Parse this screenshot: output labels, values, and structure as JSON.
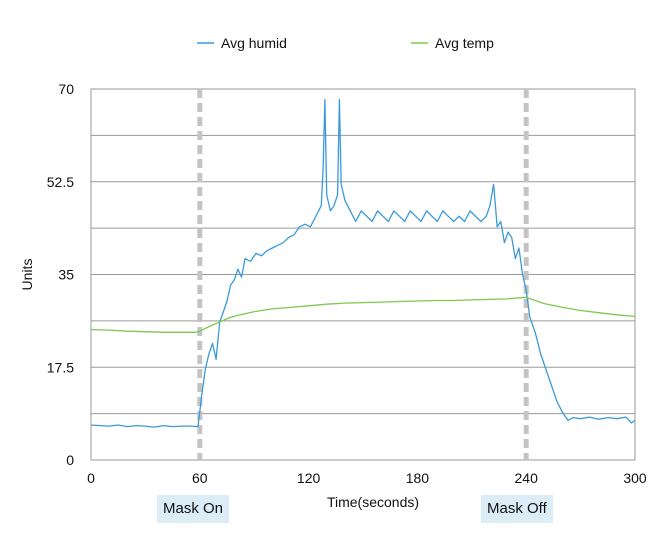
{
  "chart_data": {
    "type": "line",
    "xlabel": "Time(seconds)",
    "ylabel": "Units",
    "xlim": [
      0,
      300
    ],
    "ylim": [
      0,
      70
    ],
    "x_ticks": [
      "0",
      "60",
      "120",
      "180",
      "240",
      "300"
    ],
    "y_ticks": [
      "0",
      "17.5",
      "35",
      "52.5",
      "70"
    ],
    "grid": "horizontal",
    "legend_position": "top",
    "series": [
      {
        "name": "Avg humid",
        "color": "#3a9ad9",
        "points": [
          [
            0,
            6.6
          ],
          [
            5,
            6.5
          ],
          [
            10,
            6.4
          ],
          [
            15,
            6.6
          ],
          [
            20,
            6.3
          ],
          [
            25,
            6.5
          ],
          [
            30,
            6.4
          ],
          [
            35,
            6.2
          ],
          [
            40,
            6.5
          ],
          [
            45,
            6.3
          ],
          [
            50,
            6.4
          ],
          [
            55,
            6.4
          ],
          [
            59,
            6.3
          ],
          [
            61,
            12
          ],
          [
            63,
            17
          ],
          [
            65,
            20
          ],
          [
            67,
            22
          ],
          [
            69,
            19
          ],
          [
            71,
            26
          ],
          [
            73,
            28
          ],
          [
            75,
            30
          ],
          [
            77,
            33
          ],
          [
            79,
            34
          ],
          [
            81,
            36
          ],
          [
            83,
            34.5
          ],
          [
            85,
            38
          ],
          [
            88,
            37.5
          ],
          [
            91,
            39
          ],
          [
            94,
            38.5
          ],
          [
            97,
            39.5
          ],
          [
            100,
            40
          ],
          [
            103,
            40.5
          ],
          [
            106,
            41
          ],
          [
            109,
            42
          ],
          [
            112,
            42.5
          ],
          [
            115,
            44
          ],
          [
            118,
            44.5
          ],
          [
            121,
            44
          ],
          [
            124,
            46
          ],
          [
            127,
            48
          ],
          [
            128,
            55
          ],
          [
            129,
            68
          ],
          [
            130,
            50
          ],
          [
            132,
            47
          ],
          [
            134,
            48
          ],
          [
            136,
            50
          ],
          [
            137,
            68
          ],
          [
            138,
            52
          ],
          [
            140,
            49
          ],
          [
            143,
            47
          ],
          [
            146,
            45
          ],
          [
            149,
            47
          ],
          [
            152,
            46
          ],
          [
            155,
            45
          ],
          [
            158,
            47
          ],
          [
            161,
            46
          ],
          [
            164,
            45
          ],
          [
            167,
            47
          ],
          [
            170,
            46
          ],
          [
            173,
            45
          ],
          [
            176,
            47
          ],
          [
            179,
            46
          ],
          [
            182,
            45
          ],
          [
            185,
            47
          ],
          [
            188,
            46
          ],
          [
            191,
            45
          ],
          [
            194,
            47
          ],
          [
            197,
            46
          ],
          [
            200,
            45
          ],
          [
            203,
            46
          ],
          [
            206,
            45
          ],
          [
            209,
            47
          ],
          [
            212,
            46
          ],
          [
            215,
            45
          ],
          [
            218,
            46
          ],
          [
            220,
            48
          ],
          [
            222,
            52
          ],
          [
            224,
            44
          ],
          [
            226,
            45
          ],
          [
            228,
            41
          ],
          [
            230,
            43
          ],
          [
            232,
            42
          ],
          [
            234,
            38
          ],
          [
            236,
            40
          ],
          [
            238,
            35
          ],
          [
            240,
            32
          ],
          [
            242,
            27
          ],
          [
            245,
            24
          ],
          [
            248,
            20
          ],
          [
            251,
            17
          ],
          [
            254,
            14
          ],
          [
            257,
            11
          ],
          [
            260,
            9
          ],
          [
            263,
            7.5
          ],
          [
            266,
            8
          ],
          [
            270,
            7.8
          ],
          [
            275,
            8.1
          ],
          [
            280,
            7.7
          ],
          [
            285,
            8
          ],
          [
            290,
            7.8
          ],
          [
            295,
            8.1
          ],
          [
            298,
            7
          ],
          [
            300,
            7.5
          ]
        ]
      },
      {
        "name": "Avg temp",
        "color": "#7ec850",
        "points": [
          [
            0,
            24.6
          ],
          [
            10,
            24.5
          ],
          [
            20,
            24.3
          ],
          [
            30,
            24.2
          ],
          [
            40,
            24.1
          ],
          [
            50,
            24.1
          ],
          [
            58,
            24.1
          ],
          [
            60,
            24.3
          ],
          [
            64,
            25
          ],
          [
            68,
            25.6
          ],
          [
            72,
            26.2
          ],
          [
            76,
            26.8
          ],
          [
            80,
            27.2
          ],
          [
            85,
            27.6
          ],
          [
            90,
            28
          ],
          [
            100,
            28.5
          ],
          [
            110,
            28.8
          ],
          [
            120,
            29.1
          ],
          [
            130,
            29.4
          ],
          [
            140,
            29.6
          ],
          [
            150,
            29.7
          ],
          [
            160,
            29.8
          ],
          [
            170,
            29.9
          ],
          [
            180,
            30
          ],
          [
            190,
            30.1
          ],
          [
            200,
            30.1
          ],
          [
            210,
            30.2
          ],
          [
            220,
            30.3
          ],
          [
            230,
            30.4
          ],
          [
            236,
            30.6
          ],
          [
            240,
            30.7
          ],
          [
            244,
            30.2
          ],
          [
            250,
            29.5
          ],
          [
            260,
            28.8
          ],
          [
            270,
            28.2
          ],
          [
            280,
            27.8
          ],
          [
            290,
            27.4
          ],
          [
            300,
            27.1
          ]
        ]
      }
    ],
    "markers": [
      {
        "x": 60,
        "label": "Mask On"
      },
      {
        "x": 240,
        "label": "Mask Off"
      }
    ]
  }
}
